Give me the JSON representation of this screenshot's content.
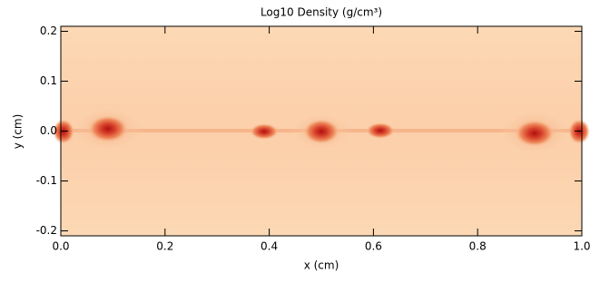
{
  "chart_data": {
    "type": "image",
    "title": "Log10 Density (g/cm³)",
    "x_label": "x (cm)",
    "y_label": "y (cm)",
    "xlim": [
      0,
      1
    ],
    "xticks": [
      {
        "value": 0,
        "label": "0.0"
      },
      0.2,
      0.4,
      0.6,
      0.8,
      {
        "value": 1,
        "label": "1.0"
      }
    ],
    "ylim": [
      -0.21,
      0.21
    ],
    "yticks": [
      -0.2,
      -0.1,
      {
        "value": 0,
        "label": "0.0"
      },
      0.1,
      0.2
    ]
  }
}
